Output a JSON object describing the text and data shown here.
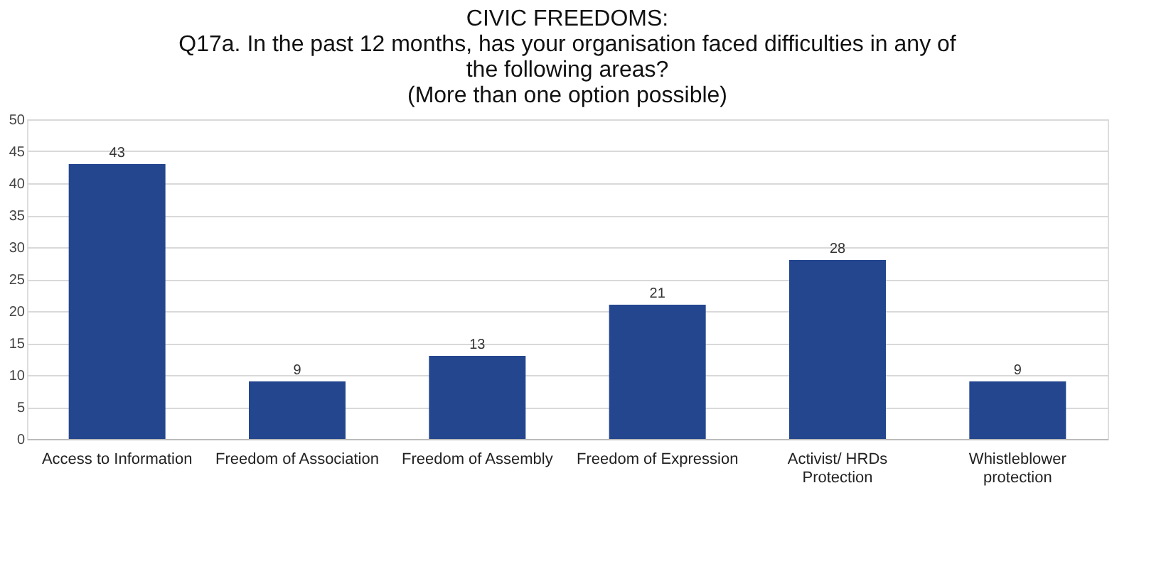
{
  "chart_data": {
    "type": "bar",
    "title": "CIVIC FREEDOMS:",
    "subtitle": "Q17a. In the past 12 months, has your organisation faced difficulties in any of the following areas?\n(More than one option possible)",
    "categories": [
      "Access to Information",
      "Freedom of Association",
      "Freedom of Assembly",
      "Freedom of Expression",
      "Activist/ HRDs Protection",
      "Whistleblower protection"
    ],
    "values": [
      43,
      9,
      13,
      21,
      28,
      9
    ],
    "color": "#24468f",
    "ylim": [
      0,
      50
    ],
    "yticks": [
      0,
      5,
      10,
      15,
      20,
      25,
      30,
      35,
      40,
      45,
      50
    ],
    "grid": "y",
    "data_labels": true
  }
}
